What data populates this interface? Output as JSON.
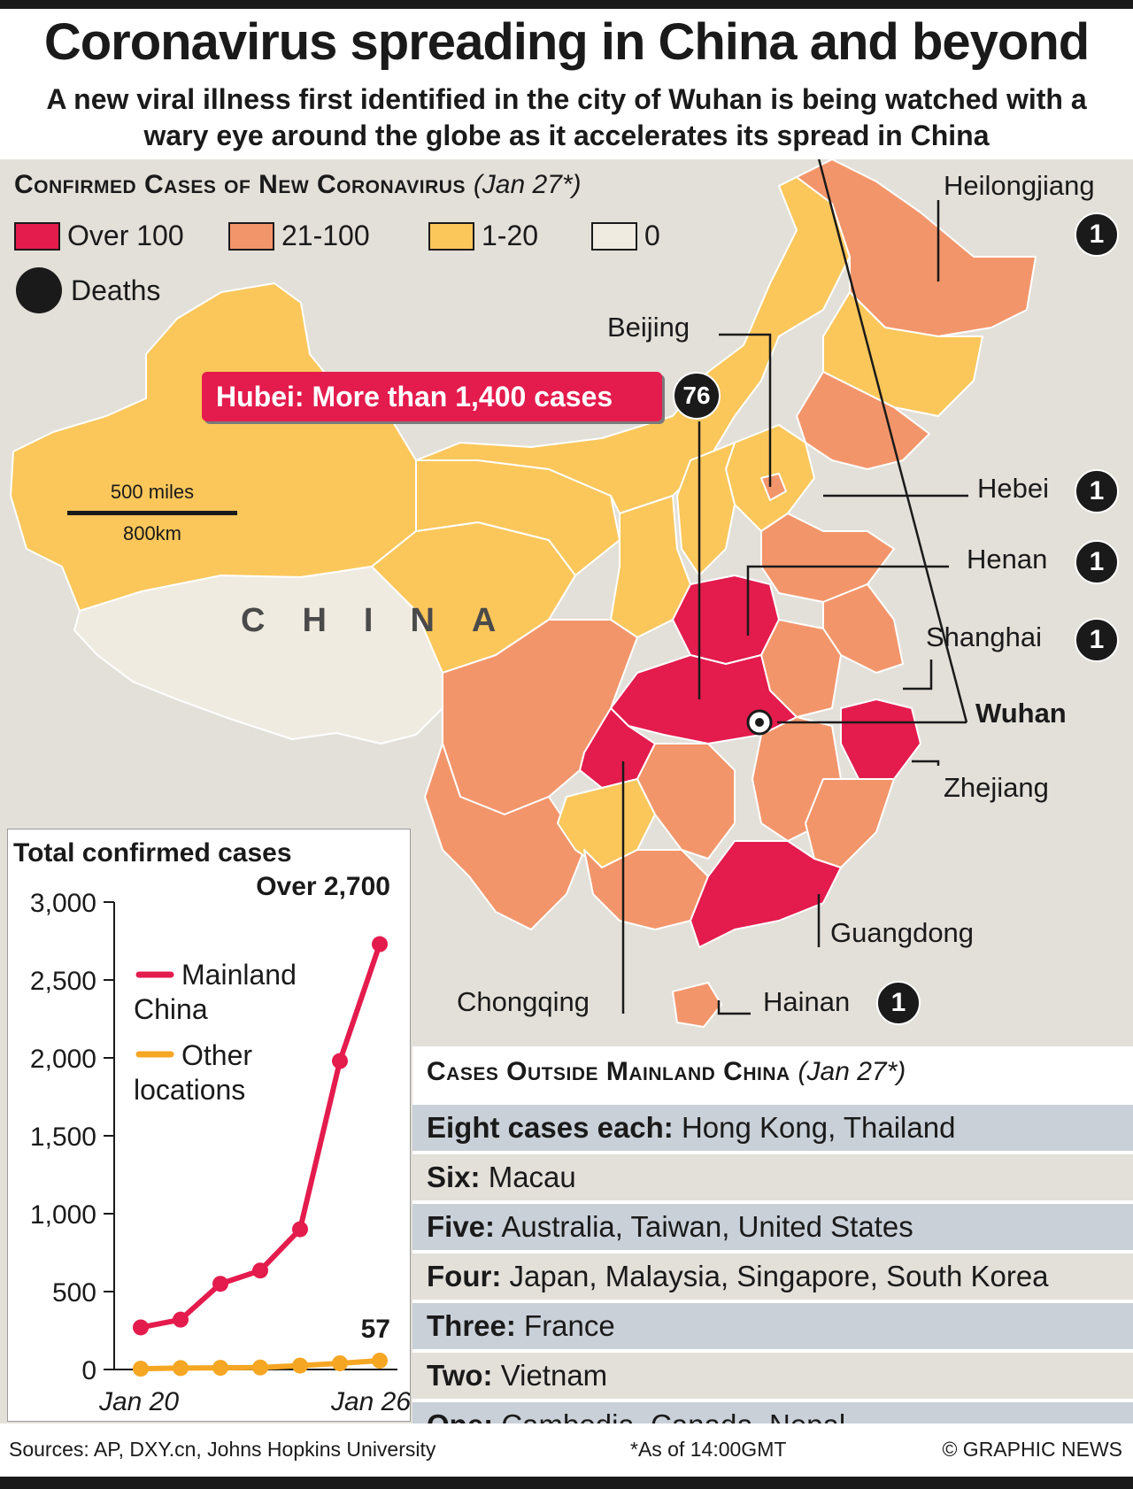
{
  "title": "Coronavirus spreading in China and beyond",
  "subtitle": "A new viral illness first identified in the city of Wuhan is being watched with a wary eye around the globe as it accelerates its spread in China",
  "map": {
    "section_title": "Confirmed Cases of New Coronavirus",
    "section_date": "(Jan 27*)",
    "legend": [
      {
        "label": "Over 100",
        "color": "#e41b4d"
      },
      {
        "label": "21-100",
        "color": "#f3956a"
      },
      {
        "label": "1-20",
        "color": "#fbc75b"
      },
      {
        "label": "0",
        "color": "#efebe1"
      }
    ],
    "deaths_label": "Deaths",
    "country_label": "CHINA",
    "scale_miles": "500 miles",
    "scale_km": "800km",
    "hubei_callout": "Hubei: More than 1,400 cases",
    "hubei_deaths": "76",
    "places": {
      "heilongjiang": "Heilongjiang",
      "heilongjiang_deaths": "1",
      "beijing": "Beijing",
      "hebei": "Hebei",
      "hebei_deaths": "1",
      "henan": "Henan",
      "henan_deaths": "1",
      "shanghai": "Shanghai",
      "shanghai_deaths": "1",
      "wuhan": "Wuhan",
      "zhejiang": "Zhejiang",
      "guangdong": "Guangdong",
      "chongqing": "Chongqing",
      "hainan": "Hainan",
      "hainan_deaths": "1"
    }
  },
  "chart_data": {
    "type": "line",
    "title": "Total confirmed cases",
    "x": [
      "Jan 20",
      "Jan 21",
      "Jan 22",
      "Jan 23",
      "Jan 24",
      "Jan 25",
      "Jan 26"
    ],
    "x_tick_labels": [
      "Jan 20",
      "Jan 26"
    ],
    "ylim": [
      0,
      3000
    ],
    "y_ticks": [
      "0",
      "500",
      "1,000",
      "1,500",
      "2,000",
      "2,500",
      "3,000"
    ],
    "series": [
      {
        "name": "Mainland China",
        "color": "#e41b4d",
        "values": [
          270,
          320,
          550,
          635,
          900,
          1980,
          2730
        ]
      },
      {
        "name": "Other locations",
        "color": "#f5a623",
        "values": [
          5,
          9,
          11,
          13,
          25,
          40,
          57
        ]
      }
    ],
    "legend_mainland": [
      "Mainland",
      "China"
    ],
    "legend_other": [
      "Other",
      "locations"
    ],
    "annotation_top": "Over 2,700",
    "annotation_other": "57"
  },
  "outside": {
    "title": "Cases Outside Mainland China",
    "date": "(Jan 27*)",
    "rows": [
      {
        "label": "Eight cases each:",
        "text": "Hong Kong, Thailand"
      },
      {
        "label": "Six:",
        "text": "Macau"
      },
      {
        "label": "Five:",
        "text": "Australia, Taiwan, United States"
      },
      {
        "label": "Four:",
        "text": "Japan, Malaysia, Singapore, South Korea"
      },
      {
        "label": "Three:",
        "text": "France"
      },
      {
        "label": "Two:",
        "text": "Vietnam"
      },
      {
        "label": "One:",
        "text": "Cambodia, Canada, Nepal"
      }
    ]
  },
  "footer": {
    "sources": "Sources: AP, DXY.cn, Johns Hopkins University",
    "note": "*As of 14:00GMT",
    "credit": "© GRAPHIC NEWS"
  }
}
